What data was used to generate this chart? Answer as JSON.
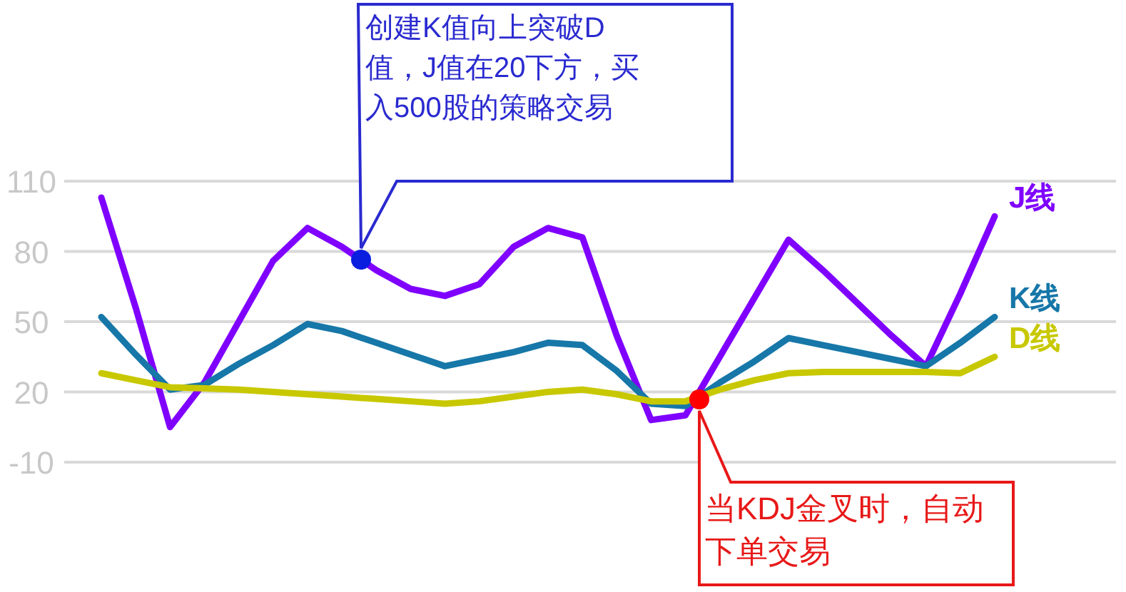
{
  "chart_data": {
    "type": "line",
    "categories": [
      null,
      null,
      null,
      null,
      null,
      null,
      null,
      null,
      null,
      null,
      null,
      null,
      null,
      null,
      null,
      null,
      null,
      null,
      null,
      null,
      null,
      null,
      null,
      null,
      null,
      null,
      null
    ],
    "series": [
      {
        "name": "J线",
        "color": "#7f00ff",
        "values": [
          103,
          56,
          5,
          24,
          50,
          76,
          90,
          82,
          72,
          64,
          61,
          66,
          82,
          90,
          86,
          44,
          8,
          10,
          35,
          60,
          85,
          72,
          58,
          44,
          31,
          62,
          95
        ]
      },
      {
        "name": "K线",
        "color": "#1677a8",
        "values": [
          52,
          36,
          21,
          23,
          32,
          40,
          49,
          46,
          41,
          36,
          31,
          34,
          37,
          41,
          40,
          29,
          15,
          14,
          24,
          33,
          43,
          40,
          37,
          34,
          31,
          41,
          52
        ]
      },
      {
        "name": "D线",
        "color": "#c8c800",
        "values": [
          28,
          25,
          22,
          21.5,
          21,
          20,
          19,
          18,
          17,
          16,
          15,
          16,
          18,
          20,
          21,
          19,
          16,
          16,
          21,
          25,
          28,
          28.5,
          28.5,
          28.5,
          28.5,
          28,
          35
        ]
      }
    ],
    "ylim": [
      -10,
      110
    ],
    "yticks": [
      -10,
      20,
      50,
      80,
      110
    ],
    "grid": "y",
    "marker": "none",
    "line_style": "solid",
    "tick_labels": "y",
    "annotations": [
      "创建K值向上突破D值，J值在20下方，买入500股的策略交易",
      "当KDJ金叉时，自动下单交易"
    ]
  }
}
